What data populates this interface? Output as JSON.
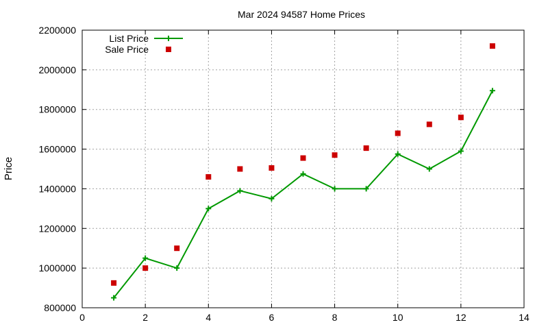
{
  "chart_data": {
    "type": "line",
    "title": "Mar 2024 94587 Home Prices",
    "xlabel": "",
    "ylabel": "Price",
    "xlim": [
      0,
      14
    ],
    "ylim": [
      800000,
      2200000
    ],
    "x_ticks": [
      0,
      2,
      4,
      6,
      8,
      10,
      12,
      14
    ],
    "y_ticks": [
      800000,
      1000000,
      1200000,
      1400000,
      1600000,
      1800000,
      2000000,
      2200000
    ],
    "grid": true,
    "legend_position": "top-left",
    "series": [
      {
        "name": "List Price",
        "style": "line-with-plus-markers",
        "color": "#009900",
        "x": [
          1,
          2,
          3,
          4,
          5,
          6,
          7,
          8,
          9,
          10,
          11,
          12,
          13
        ],
        "y": [
          850000,
          1050000,
          1000000,
          1300000,
          1390000,
          1350000,
          1475000,
          1400000,
          1400000,
          1575000,
          1500000,
          1590000,
          1895000
        ]
      },
      {
        "name": "Sale Price",
        "style": "square-markers",
        "color": "#cc0000",
        "x": [
          1,
          2,
          3,
          4,
          5,
          6,
          7,
          8,
          9,
          10,
          11,
          12,
          13
        ],
        "y": [
          925000,
          1000000,
          1100000,
          1460000,
          1500000,
          1505000,
          1555000,
          1570000,
          1605000,
          1680000,
          1725000,
          1760000,
          2120000
        ]
      }
    ]
  }
}
